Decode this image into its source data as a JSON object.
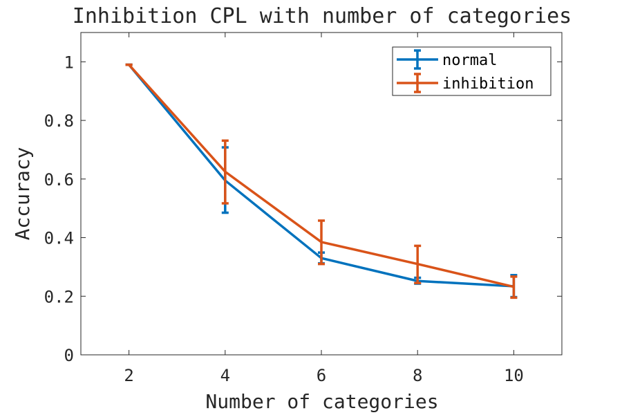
{
  "chart_data": {
    "type": "line",
    "title": "Inhibition CPL with number of categories",
    "xlabel": "Number of categories",
    "ylabel": "Accuracy",
    "x": [
      2,
      4,
      6,
      8,
      10
    ],
    "xlim": [
      1,
      11
    ],
    "ylim": [
      0,
      1.1
    ],
    "xticks": [
      2,
      4,
      6,
      8,
      10
    ],
    "yticks": [
      0,
      0.2,
      0.4,
      0.6,
      0.8,
      1
    ],
    "grid": false,
    "legend_position": "top-right",
    "error_bars": true,
    "series": [
      {
        "name": "normal",
        "color": "#0072BD",
        "values": [
          0.99,
          0.595,
          0.33,
          0.252,
          0.234
        ],
        "err_low": [
          0.99,
          0.485,
          0.312,
          0.243,
          0.197
        ],
        "err_high": [
          0.99,
          0.708,
          0.349,
          0.263,
          0.272
        ]
      },
      {
        "name": "inhibition",
        "color": "#D95319",
        "values": [
          0.99,
          0.625,
          0.385,
          0.31,
          0.232
        ],
        "err_low": [
          0.99,
          0.517,
          0.31,
          0.245,
          0.195
        ],
        "err_high": [
          0.99,
          0.731,
          0.458,
          0.372,
          0.267
        ]
      }
    ]
  }
}
